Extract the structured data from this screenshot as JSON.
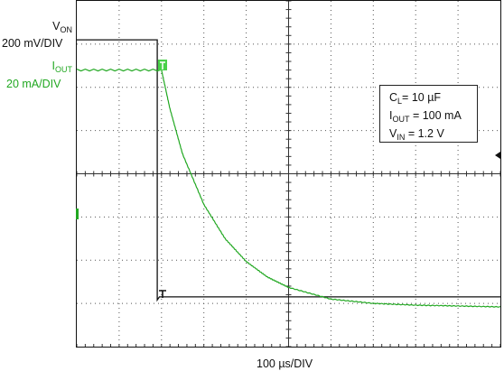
{
  "chart_data": {
    "type": "line",
    "title": "",
    "xlabel": "100 µs/DIV",
    "grid": true,
    "divisions": {
      "x": 10,
      "y": 8
    },
    "series": [
      {
        "name": "V_ON",
        "scale": "200 mV/DIV",
        "color": "#111111",
        "x_div": [
          0,
          1.9,
          1.9,
          1.95,
          10
        ],
        "y_div": [
          7.1,
          7.1,
          1.08,
          1.15,
          1.15
        ]
      },
      {
        "name": "I_OUT",
        "scale": "20 mA/DIV",
        "color": "#22a822",
        "x_div": [
          0,
          2.0,
          2.2,
          2.5,
          3.0,
          3.5,
          4.0,
          4.5,
          5.0,
          6.0,
          7.0,
          8.0,
          9.0,
          10
        ],
        "y_div": [
          6.4,
          6.4,
          5.5,
          4.45,
          3.29,
          2.5,
          1.97,
          1.61,
          1.37,
          1.1,
          1.0,
          0.96,
          0.94,
          0.92
        ]
      }
    ]
  },
  "labels": {
    "von_main": "V",
    "von_sub": "ON",
    "von_scale": "200 mV/DIV",
    "iout_main": "I",
    "iout_sub": "OUT",
    "iout_scale": "20 mA/DIV",
    "time_scale": "100 µs/DIV"
  },
  "legend": {
    "cl_main": "C",
    "cl_sub": "L",
    "cl_value": "= 10 µF",
    "iout_main": "I",
    "iout_sub": "OUT",
    "iout_value": " = 100 mA",
    "vin_main": "V",
    "vin_sub": "IN",
    "vin_value": " = 1.2 V"
  },
  "colors": {
    "grid_dot": "#555555",
    "frame": "#111111"
  }
}
